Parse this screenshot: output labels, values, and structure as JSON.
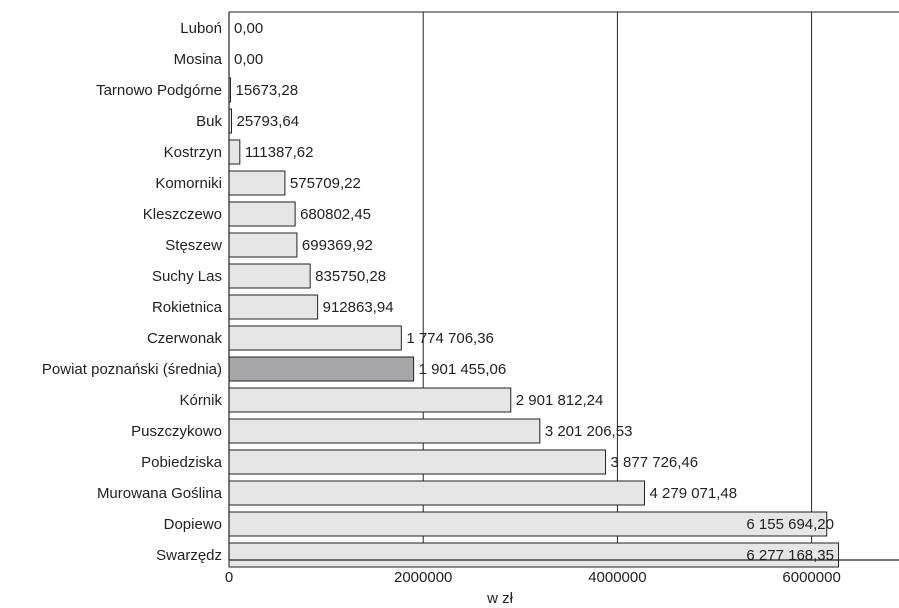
{
  "chart_data": {
    "type": "bar",
    "orientation": "horizontal",
    "categories": [
      "Luboń",
      "Mosina",
      "Tarnowo Podgórne",
      "Buk",
      "Kostrzyn",
      "Komorniki",
      "Kleszczewo",
      "Stęszew",
      "Suchy Las",
      "Rokietnica",
      "Czerwonak",
      "Powiat poznański (średnia)",
      "Kórnik",
      "Puszczykowo",
      "Pobiedziska",
      "Murowana Goślina",
      "Dopiewo",
      "Swarzędz"
    ],
    "values": [
      0,
      0,
      15673.28,
      25793.64,
      111387.62,
      575709.22,
      680802.45,
      699369.92,
      835750.28,
      912863.94,
      1774706.36,
      1901455.06,
      2901812.24,
      3201206.53,
      3877726.46,
      4279071.48,
      6155694.2,
      6277168.35
    ],
    "value_labels": [
      "0,00",
      "0,00",
      "15673,28",
      "25793,64",
      "111387,62",
      "575709,22",
      "680802,45",
      "699369,92",
      "835750,28",
      "912863,94",
      "1 774 706,36",
      "1 901 455,06",
      "2 901 812,24",
      "3 201 206,53",
      "3 877 726,46",
      "4 279 071,48",
      "6 155 694,20",
      "6 277 168,35"
    ],
    "highlight_category": "Powiat poznański (średnia)",
    "xlabel": "w zł",
    "ylabel": "",
    "xlim": [
      0,
      6900000
    ],
    "xticks": [
      0,
      2000000,
      4000000,
      6000000
    ],
    "xtick_labels": [
      "0",
      "2000000",
      "4000000",
      "6000000"
    ],
    "grid": "vertical",
    "colors": {
      "bar": "#e6e6e6",
      "highlight_bar": "#a7a7a9",
      "bar_stroke": "#222222",
      "grid": "#222222",
      "text": "#222222"
    }
  }
}
